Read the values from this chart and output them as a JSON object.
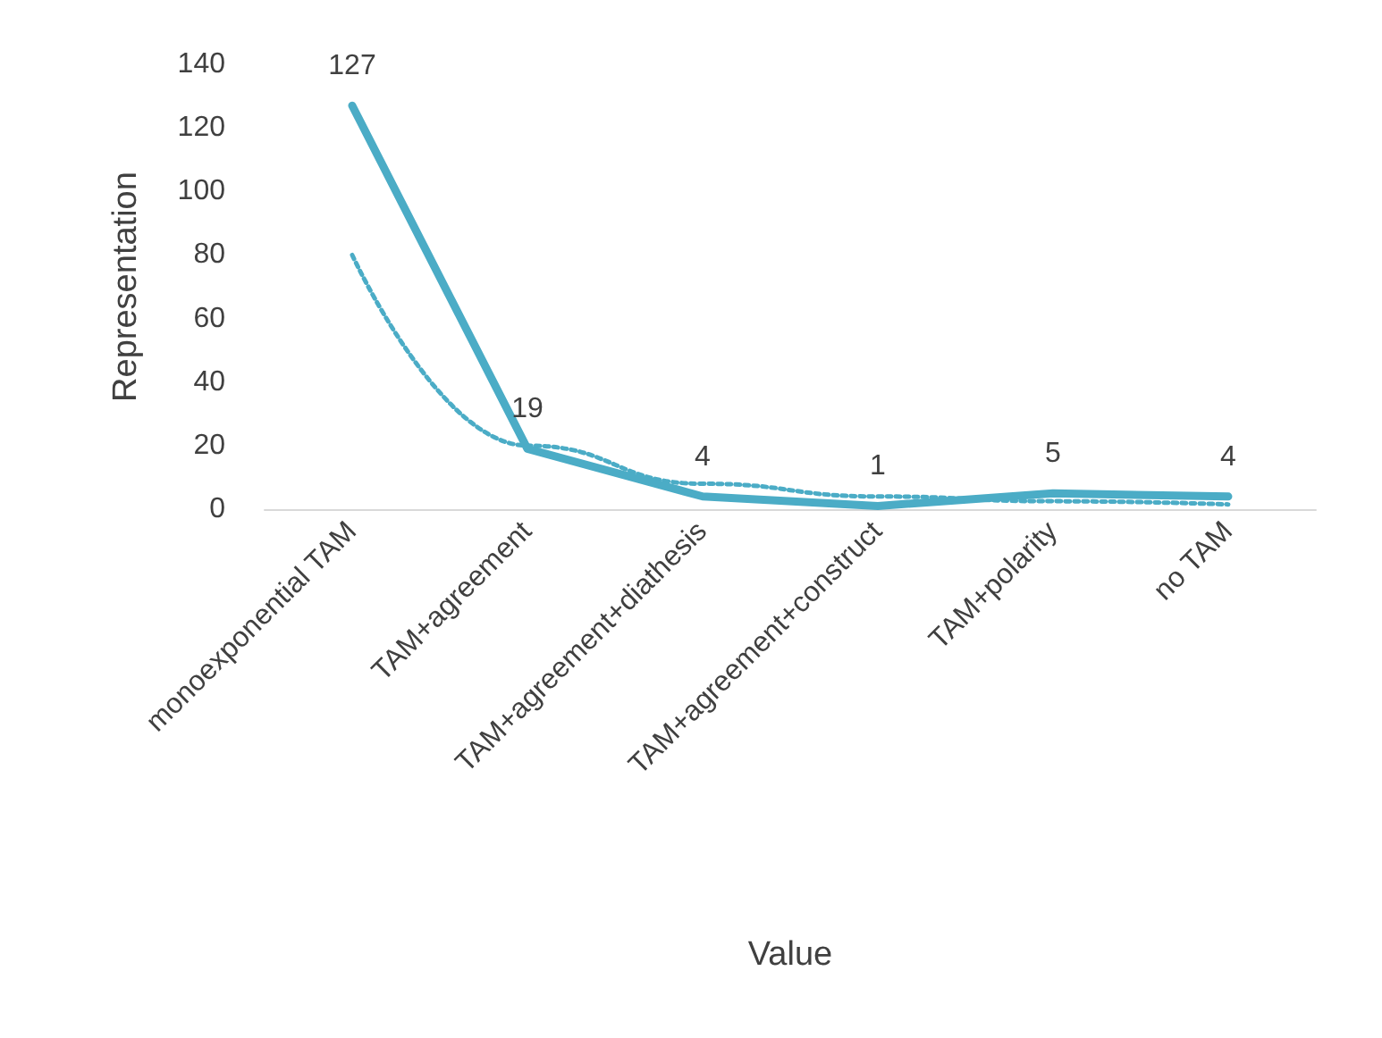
{
  "chart_data": {
    "type": "line",
    "xlabel": "Value",
    "ylabel": "Representation",
    "categories": [
      "monoexponential TAM",
      "TAM+agreement",
      "TAM+agreement+diathesis",
      "TAM+agreement+construct",
      "TAM+polarity",
      "no TAM"
    ],
    "series": [
      {
        "color": "#4bacc6",
        "values": [
          127,
          19,
          4,
          1,
          5,
          4
        ],
        "value_labels": [
          "127",
          "19",
          "4",
          "1",
          "5",
          "4"
        ],
        "line_style": "solid"
      },
      {
        "type": "line",
        "color": "#4bacc6",
        "line_style": "dotted",
        "values": [
          80,
          20,
          8,
          4,
          2.5,
          1.5
        ]
      }
    ],
    "ylim": [
      0,
      140
    ],
    "yticks": [
      0,
      20,
      40,
      60,
      80,
      100,
      120,
      140
    ],
    "grid": false,
    "marker": "none"
  }
}
